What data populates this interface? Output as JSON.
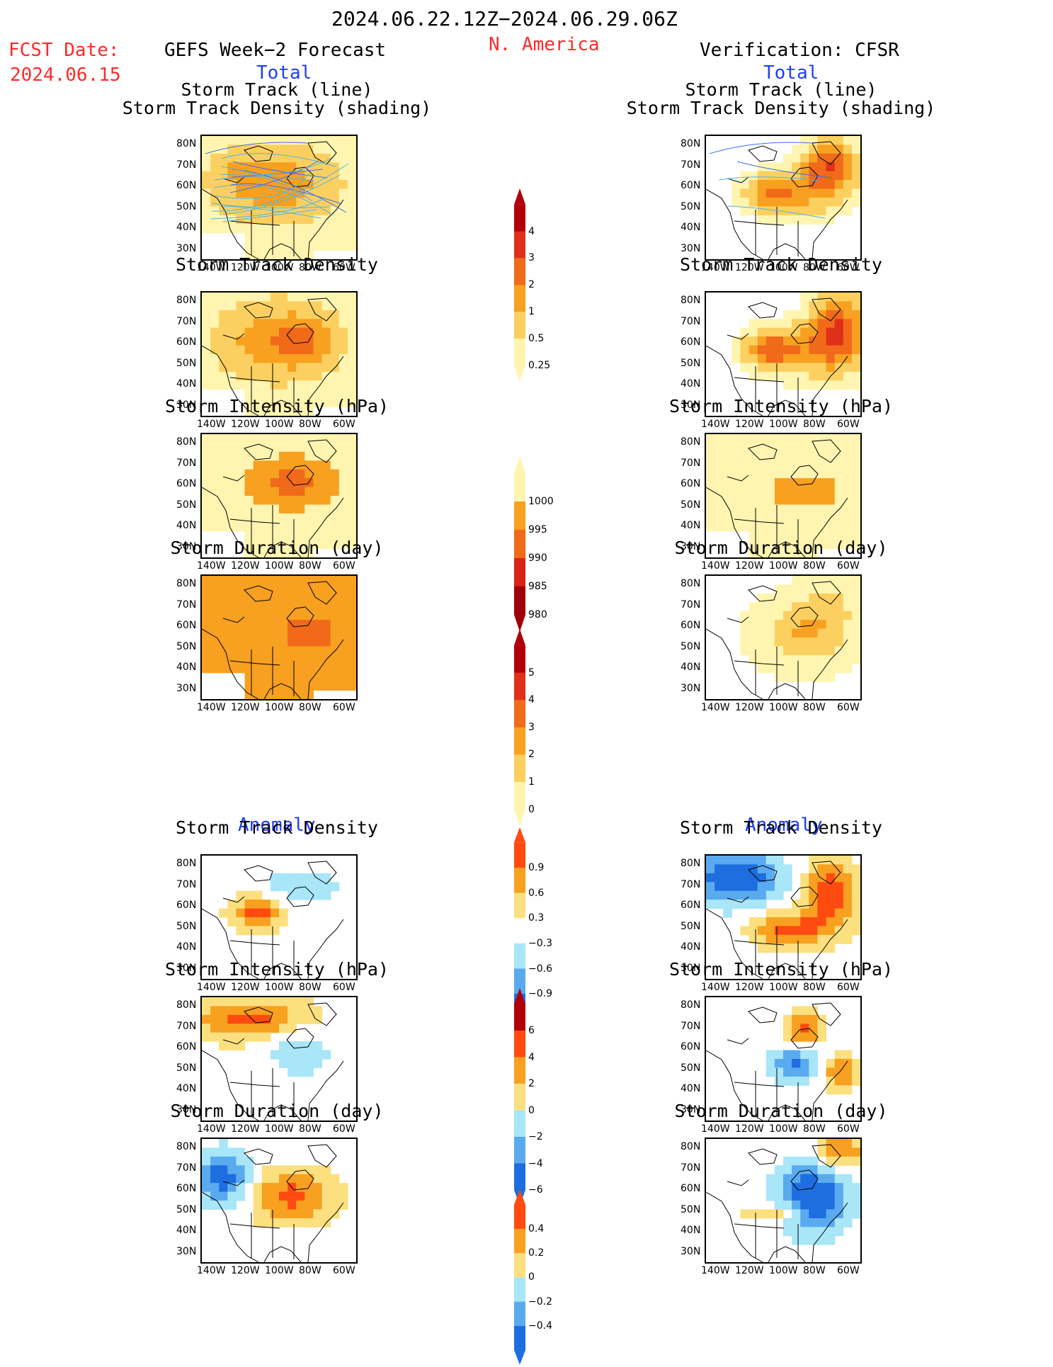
{
  "header": {
    "period": "2024.06.22.12Z−2024.06.29.06Z",
    "fcst_label": "FCST Date:",
    "fcst_date": "2024.06.15",
    "left_title": "GEFS Week−2 Forecast",
    "region": "N. America",
    "right_title": "Verification: CFSR",
    "total_left": "Total",
    "total_right": "Total",
    "anom_left": "Anomaly",
    "anom_right": "Anomaly"
  },
  "panel_titles": {
    "track_line": "Storm Track (line)",
    "track_density_shading": "Storm Track Density (shading)",
    "track_density": "Storm Track Density",
    "intensity": "Storm Intensity (hPa)",
    "duration": "Storm Duration (day)"
  },
  "axes": {
    "lat_ticks": [
      "80N",
      "70N",
      "60N",
      "50N",
      "40N",
      "30N"
    ],
    "lon_ticks": [
      "140W",
      "120W",
      "100W",
      "80W",
      "60W"
    ]
  },
  "colorbars": [
    {
      "name": "total-density",
      "labels": [
        "4",
        "3",
        "2",
        "1",
        "0.5",
        "0.25"
      ],
      "colors": [
        "#b0000a",
        "#e0301a",
        "#f06a1a",
        "#f8a020",
        "#fcd060",
        "#fff5b0"
      ]
    },
    {
      "name": "total-intensity",
      "labels": [
        "1000",
        "995",
        "990",
        "985",
        "980"
      ],
      "colors": [
        "#fff5b0",
        "#f8a020",
        "#f06a1a",
        "#d92318",
        "#a0000a"
      ]
    },
    {
      "name": "total-duration",
      "labels": [
        "5",
        "4",
        "3",
        "2",
        "1",
        "0"
      ],
      "colors": [
        "#b0000a",
        "#e0301a",
        "#f06a1a",
        "#f8a020",
        "#fcd060",
        "#fff5b0"
      ]
    },
    {
      "name": "anom-density",
      "labels": [
        "0.9",
        "0.6",
        "0.3",
        "−0.3",
        "−0.6",
        "−0.9"
      ],
      "colors": [
        "#ff4a10",
        "#f8a020",
        "#fce080",
        "#ffffff",
        "#a8e6f8",
        "#5aaaf0",
        "#1e6ee0"
      ]
    },
    {
      "name": "anom-intensity",
      "labels": [
        "6",
        "4",
        "2",
        "0",
        "−2",
        "−4",
        "−6"
      ],
      "colors": [
        "#b0000a",
        "#ff4a10",
        "#f8a020",
        "#fce080",
        "#a8e6f8",
        "#5aaaf0",
        "#1e6ee0"
      ]
    },
    {
      "name": "anom-duration",
      "labels": [
        "0.4",
        "0.2",
        "0",
        "−0.2",
        "−0.4"
      ],
      "colors": [
        "#ff4a10",
        "#f8a020",
        "#fce080",
        "#a8e6f8",
        "#5aaaf0",
        "#1e6ee0"
      ]
    }
  ],
  "chart_data": [
    {
      "type": "heatmap",
      "panel": "forecast-total-track",
      "title": "Storm Track (line) / Storm Track Density (shading)",
      "pattern": "broad orange over Canada; dense track lines 45N-75N"
    },
    {
      "type": "heatmap",
      "panel": "verification-total-track",
      "title": "Storm Track (line) / Storm Track Density (shading)",
      "pattern": "red maxima near Hudson Bay / Labrador and central Canada"
    },
    {
      "type": "heatmap",
      "panel": "forecast-total-density",
      "title": "Storm Track Density",
      "pattern": "orange-red over central and eastern Canada"
    },
    {
      "type": "heatmap",
      "panel": "verification-total-density",
      "title": "Storm Track Density",
      "pattern": "dark red over Baffin/Labrador, red central Canada"
    },
    {
      "type": "heatmap",
      "panel": "forecast-total-intensity",
      "title": "Storm Intensity (hPa)",
      "pattern": "990-995 hPa over Canada, 995-1000 elsewhere"
    },
    {
      "type": "heatmap",
      "panel": "verification-total-intensity",
      "title": "Storm Intensity (hPa)",
      "pattern": "995-1000 mostly, 990-995 near Great Lakes"
    },
    {
      "type": "heatmap",
      "panel": "forecast-total-duration",
      "title": "Storm Duration (day)",
      "pattern": "2-4 days across Canada"
    },
    {
      "type": "heatmap",
      "panel": "verification-total-duration",
      "title": "Storm Duration (day)",
      "pattern": "1-3 days east of 100W"
    },
    {
      "type": "heatmap",
      "panel": "forecast-anom-density",
      "title": "Storm Track Density",
      "pattern": "positive central Canada, weak negative north"
    },
    {
      "type": "heatmap",
      "panel": "verification-anom-density",
      "title": "Storm Track Density",
      "pattern": "negative (blue) NW Canada, strong positive east"
    },
    {
      "type": "heatmap",
      "panel": "forecast-anom-intensity",
      "title": "Storm Intensity (hPa)",
      "pattern": "positive north, weak negative eastern Canada"
    },
    {
      "type": "heatmap",
      "panel": "verification-anom-intensity",
      "title": "Storm Intensity (hPa)",
      "pattern": "positive Labrador, negative Great Lakes"
    },
    {
      "type": "heatmap",
      "panel": "forecast-anom-duration",
      "title": "Storm Duration (day)",
      "pattern": "positive central/east Canada, negative west"
    },
    {
      "type": "heatmap",
      "panel": "verification-anom-duration",
      "title": "Storm Duration (day)",
      "pattern": "negative east, positive NE corner"
    }
  ]
}
